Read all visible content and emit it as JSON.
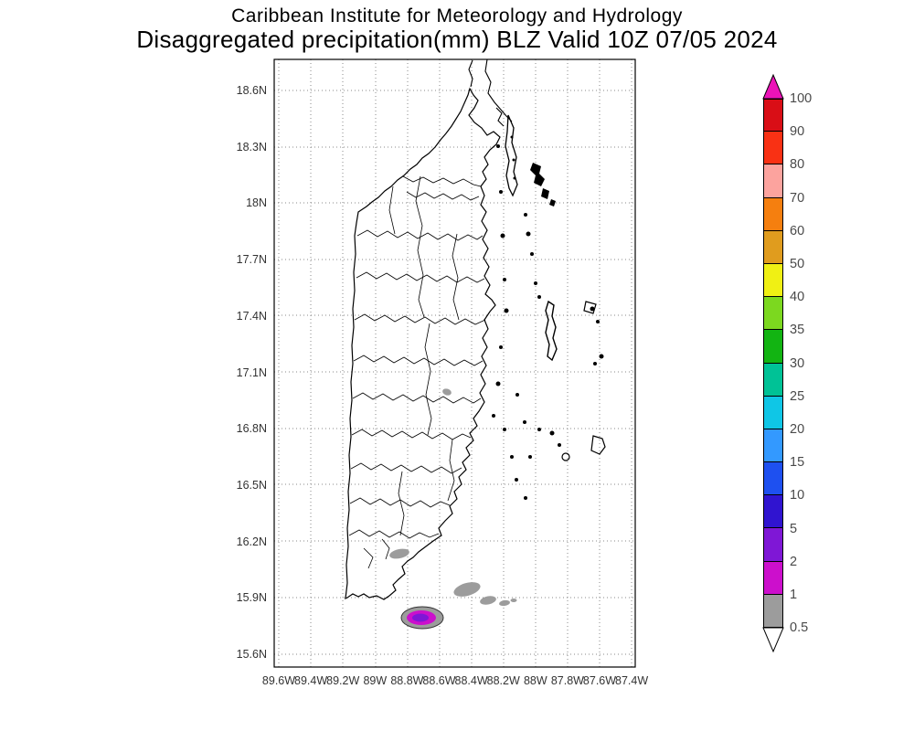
{
  "header": {
    "line1": "Caribbean Institute for Meteorology and Hydrology",
    "line2": "Disaggregated precipitation(mm) BLZ Valid 10Z 07/05 2024"
  },
  "axes": {
    "lat_ticks": [
      "18.6N",
      "18.3N",
      "18N",
      "17.7N",
      "17.4N",
      "17.1N",
      "16.8N",
      "16.5N",
      "16.2N",
      "15.9N",
      "15.6N"
    ],
    "lon_ticks": [
      "89.6W",
      "89.4W",
      "89.2W",
      "89W",
      "88.8W",
      "88.6W",
      "88.4W",
      "88.2W",
      "88W",
      "87.8W",
      "87.6W",
      "87.4W"
    ]
  },
  "colorbar": {
    "tick_labels": [
      "100",
      "90",
      "80",
      "70",
      "60",
      "50",
      "40",
      "35",
      "30",
      "25",
      "20",
      "15",
      "10",
      "5",
      "2",
      "1",
      "0.5"
    ],
    "segment_colors_top_to_bottom": [
      "#D90E16",
      "#F93114",
      "#FCA39E",
      "#F57F0F",
      "#E09C1E",
      "#F0F014",
      "#7CD81F",
      "#12B412",
      "#00C296",
      "#0FC6E6",
      "#3399FF",
      "#1E50F0",
      "#3014D0",
      "#7F17D6",
      "#CC0FCC",
      "#9C9C9C"
    ],
    "arrow_top_color": "#EC13B8",
    "arrow_bottom_color": "#FFFFFF"
  },
  "chart_data": {
    "type": "heatmap",
    "title": "Disaggregated precipitation(mm) BLZ Valid 10Z 07/05 2024",
    "units": "mm",
    "levels": [
      0.5,
      1,
      2,
      5,
      10,
      15,
      20,
      25,
      30,
      35,
      40,
      50,
      60,
      70,
      80,
      90,
      100
    ],
    "lat_range": [
      "15.6N",
      "18.6N"
    ],
    "lon_range": [
      "89.6W",
      "87.4W"
    ],
    "observed_cells": [
      {
        "location": "~17.0N 88.55W inland",
        "intensity_mm": "0.5-1",
        "color": "gray"
      },
      {
        "location": "~16.15N 88.85W near south coast",
        "intensity_mm": "0.5-1",
        "color": "gray"
      },
      {
        "location": "~15.85N 88.45W offshore band",
        "intensity_mm": "0.5-1",
        "color": "gray"
      },
      {
        "location": "~15.8N 88.7W main cell",
        "intensity_mm": "2-5 at core",
        "color": "gray ring, magenta band, purple core"
      }
    ]
  }
}
